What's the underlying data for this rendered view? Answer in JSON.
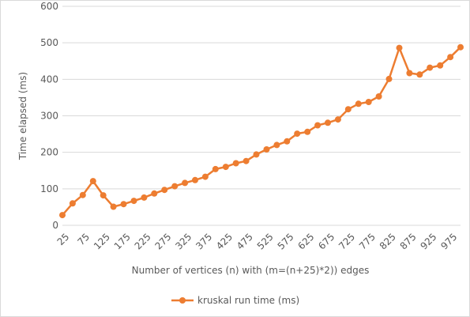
{
  "chart_data": {
    "type": "line",
    "title": "",
    "xlabel": "Number of vertices (n) with  (m=(n+25)*2)) edges",
    "ylabel": "Time elapsed (ms)",
    "ylim": [
      0,
      600
    ],
    "y_ticks": [
      "0",
      "100",
      "200",
      "300",
      "400",
      "500",
      "600"
    ],
    "x_tick_labels": [
      "25",
      "75",
      "125",
      "175",
      "225",
      "275",
      "325",
      "375",
      "425",
      "475",
      "525",
      "575",
      "625",
      "675",
      "725",
      "775",
      "825",
      "875",
      "925",
      "975"
    ],
    "x": [
      25,
      50,
      75,
      100,
      125,
      150,
      175,
      200,
      225,
      250,
      275,
      300,
      325,
      350,
      375,
      400,
      425,
      450,
      475,
      500,
      525,
      550,
      575,
      600,
      625,
      650,
      675,
      700,
      725,
      750,
      775,
      800,
      825,
      850,
      875,
      900,
      925,
      950,
      975,
      1000
    ],
    "grid": true,
    "legend_position": "bottom",
    "color": "#ED7D31",
    "series": [
      {
        "name": "kruskal run time (ms)",
        "values": [
          28,
          60,
          83,
          121,
          82,
          51,
          58,
          67,
          76,
          87,
          97,
          107,
          116,
          124,
          133,
          154,
          160,
          170,
          176,
          194,
          208,
          220,
          230,
          251,
          256,
          274,
          281,
          290,
          318,
          333,
          338,
          353,
          401,
          486,
          417,
          413,
          432,
          438,
          461,
          488
        ]
      }
    ]
  }
}
